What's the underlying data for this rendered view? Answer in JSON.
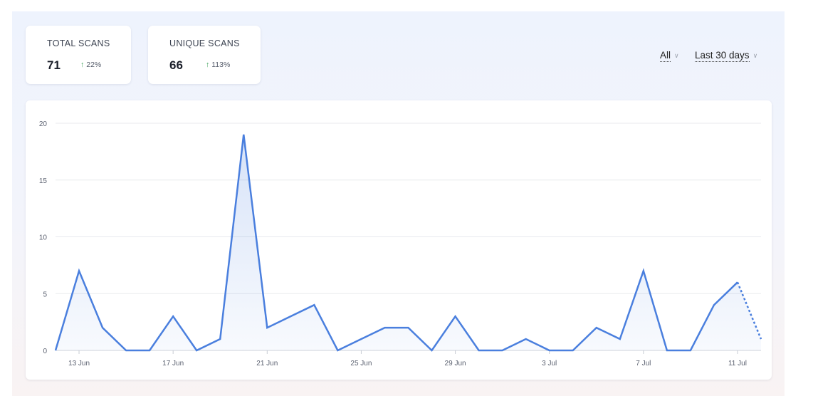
{
  "stats": [
    {
      "label": "TOTAL SCANS",
      "value": "71",
      "delta": "22%",
      "trend": "up"
    },
    {
      "label": "UNIQUE SCANS",
      "value": "66",
      "delta": "113%",
      "trend": "up"
    }
  ],
  "filters": {
    "scope": "All",
    "range": "Last 30 days"
  },
  "colors": {
    "line": "#4a7fde",
    "up": "#2e9a4c"
  },
  "chart_data": {
    "type": "line",
    "title": "",
    "xlabel": "",
    "ylabel": "",
    "ylim": [
      0,
      20
    ],
    "yticks": [
      0,
      5,
      10,
      15,
      20
    ],
    "grid": true,
    "x": [
      "12 Jun",
      "13 Jun",
      "14 Jun",
      "15 Jun",
      "16 Jun",
      "17 Jun",
      "18 Jun",
      "19 Jun",
      "20 Jun",
      "21 Jun",
      "22 Jun",
      "23 Jun",
      "24 Jun",
      "25 Jun",
      "26 Jun",
      "27 Jun",
      "28 Jun",
      "29 Jun",
      "30 Jun",
      "1 Jul",
      "2 Jul",
      "3 Jul",
      "4 Jul",
      "5 Jul",
      "6 Jul",
      "7 Jul",
      "8 Jul",
      "9 Jul",
      "10 Jul",
      "11 Jul",
      "12 Jul"
    ],
    "xticks": [
      "13 Jun",
      "17 Jun",
      "21 Jun",
      "25 Jun",
      "29 Jun",
      "3 Jul",
      "7 Jul",
      "11 Jul"
    ],
    "series": [
      {
        "values": [
          0,
          7,
          2,
          0,
          0,
          3,
          0,
          1,
          19,
          2,
          3,
          4,
          0,
          1,
          2,
          2,
          0,
          3,
          0,
          0,
          1,
          0,
          0,
          2,
          1,
          7,
          0,
          0,
          4,
          6,
          1
        ],
        "dashed_from_index": 29
      }
    ]
  }
}
